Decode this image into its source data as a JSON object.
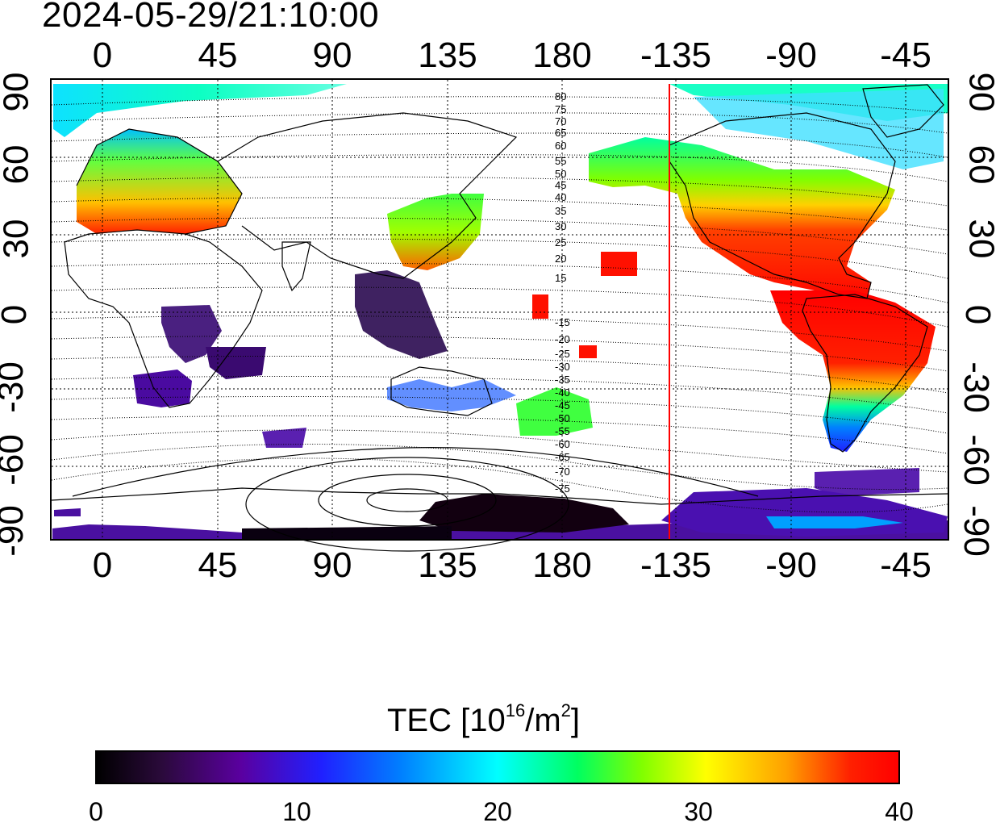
{
  "timestamp": "2024-05-29/21:10:00",
  "longitude_ticks": [
    "0",
    "45",
    "90",
    "135",
    "180",
    "-135",
    "-90",
    "-45"
  ],
  "latitude_ticks": [
    "90",
    "60",
    "30",
    "0",
    "-30",
    "-60",
    "-90"
  ],
  "magnetic_latitude_labels": [
    "80",
    "75",
    "70",
    "65",
    "60",
    "55",
    "50",
    "45",
    "40",
    "35",
    "30",
    "25",
    "20",
    "15",
    "-15",
    "-20",
    "-25",
    "-30",
    "-35",
    "-40",
    "-45",
    "-50",
    "-55",
    "-60",
    "-65",
    "-70",
    "-75"
  ],
  "colorbar": {
    "title_prefix": "TEC  [10",
    "title_exponent": "16",
    "title_mid": "/m",
    "title_exponent2": "2",
    "title_suffix": "]",
    "ticks": [
      "0",
      "10",
      "20",
      "30",
      "40"
    ],
    "min": 0,
    "max": 40
  },
  "colors": {
    "terminator_line": "#ff0000",
    "grid": "#000000"
  },
  "regions": [
    {
      "name": "north-america",
      "level": 38
    },
    {
      "name": "south-america",
      "level": 36
    },
    {
      "name": "east-asia",
      "level": 30
    },
    {
      "name": "europe",
      "level": 27
    },
    {
      "name": "antarctica",
      "level": 3
    },
    {
      "name": "southern-africa",
      "level": 5
    }
  ]
}
